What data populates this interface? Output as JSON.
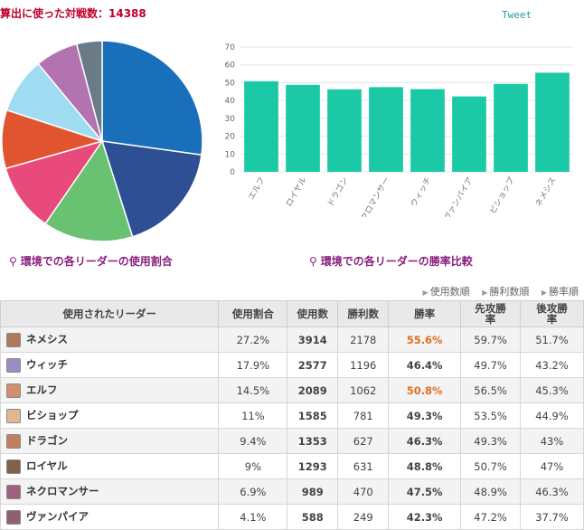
{
  "header": {
    "title": "算出に使った対戦数：14388",
    "tweet": "Tweet"
  },
  "captions": {
    "pie": "環境での各リーダーの使用割合",
    "bar": "環境での各リーダーの勝率比較"
  },
  "sort": {
    "usage": "使用数順",
    "wins": "勝利数順",
    "rate": "勝率順"
  },
  "table": {
    "headers": {
      "leader": "使用されたリーダー",
      "share": "使用割合",
      "count": "使用数",
      "wins": "勝利数",
      "rate": "勝率",
      "first_1": "先攻勝",
      "first_2": "率",
      "second_1": "後攻勝",
      "second_2": "率"
    },
    "rows": [
      {
        "leader": "ネメシス",
        "share": "27.2%",
        "count": "3914",
        "wins": "2178",
        "rate": "55.6%",
        "first": "59.7%",
        "second": "51.7%",
        "rate_color": "#e07020",
        "avatar": "#b07a5a"
      },
      {
        "leader": "ウィッチ",
        "share": "17.9%",
        "count": "2577",
        "wins": "1196",
        "rate": "46.4%",
        "first": "49.7%",
        "second": "43.2%",
        "rate_color": "#444444",
        "avatar": "#9c8cc0"
      },
      {
        "leader": "エルフ",
        "share": "14.5%",
        "count": "2089",
        "wins": "1062",
        "rate": "50.8%",
        "first": "56.5%",
        "second": "45.3%",
        "rate_color": "#e07020",
        "avatar": "#d09070"
      },
      {
        "leader": "ビショップ",
        "share": "11%",
        "count": "1585",
        "wins": "781",
        "rate": "49.3%",
        "first": "53.5%",
        "second": "44.9%",
        "rate_color": "#444444",
        "avatar": "#e0b890"
      },
      {
        "leader": "ドラゴン",
        "share": "9.4%",
        "count": "1353",
        "wins": "627",
        "rate": "46.3%",
        "first": "49.3%",
        "second": "43%",
        "rate_color": "#444444",
        "avatar": "#c08060"
      },
      {
        "leader": "ロイヤル",
        "share": "9%",
        "count": "1293",
        "wins": "631",
        "rate": "48.8%",
        "first": "50.7%",
        "second": "47%",
        "rate_color": "#444444",
        "avatar": "#806048"
      },
      {
        "leader": "ネクロマンサー",
        "share": "6.9%",
        "count": "989",
        "wins": "470",
        "rate": "47.5%",
        "first": "48.9%",
        "second": "46.3%",
        "rate_color": "#444444",
        "avatar": "#a06080"
      },
      {
        "leader": "ヴァンパイア",
        "share": "4.1%",
        "count": "588",
        "wins": "249",
        "rate": "42.3%",
        "first": "47.2%",
        "second": "37.7%",
        "rate_color": "#444444",
        "avatar": "#906070"
      }
    ]
  },
  "chart_data": [
    {
      "type": "pie",
      "title": "",
      "slices": [
        {
          "label": "ネメシス",
          "value": 27.2,
          "color": "#1a6fba"
        },
        {
          "label": "ウィッチ",
          "value": 17.9,
          "color": "#2e4f93"
        },
        {
          "label": "エルフ",
          "value": 14.5,
          "color": "#69c172"
        },
        {
          "label": "ビショップ",
          "value": 11,
          "color": "#e84a7c"
        },
        {
          "label": "ドラゴン",
          "value": 9.4,
          "color": "#e05530"
        },
        {
          "label": "ロイヤル",
          "value": 9,
          "color": "#9fdcf2"
        },
        {
          "label": "ネクロマンサー",
          "value": 6.9,
          "color": "#b373b1"
        },
        {
          "label": "ヴァンパイア",
          "value": 4.1,
          "color": "#6b7a87"
        }
      ]
    },
    {
      "type": "bar",
      "title": "",
      "categories": [
        "エルフ",
        "ロイヤル",
        "ドラゴン",
        "ネクロマンサー",
        "ウィッチ",
        "ヴァンパイア",
        "ビショップ",
        "ネメシス"
      ],
      "values": [
        50.8,
        48.8,
        46.3,
        47.5,
        46.4,
        42.3,
        49.3,
        55.6
      ],
      "yticks": [
        0,
        10,
        20,
        30,
        40,
        50,
        60,
        70
      ],
      "ylim": [
        0,
        70
      ],
      "color": "#1cc9a6",
      "grid": true
    }
  ]
}
